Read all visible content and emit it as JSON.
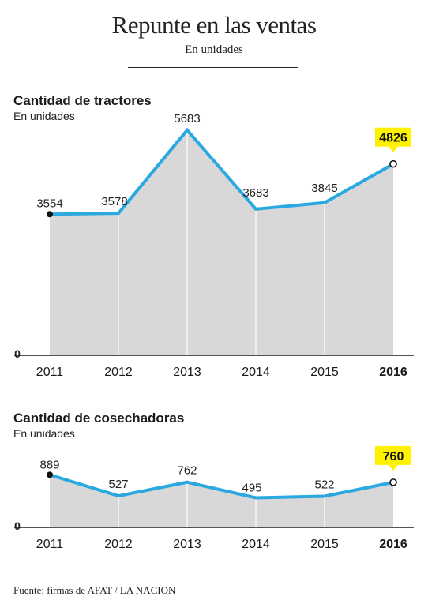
{
  "title": "Repunte en las ventas",
  "subtitle": "En unidades",
  "source": "Fuente: firmas de AFAT / LA NACION",
  "colors": {
    "line": "#2aa8e0",
    "area": "#d8d8d8",
    "highlight": "#fff200",
    "text": "#1a1a1a"
  },
  "chart_data": [
    {
      "type": "area",
      "title": "Cantidad de tractores",
      "subtitle": "En unidades",
      "categories": [
        "2011",
        "2012",
        "2013",
        "2014",
        "2015",
        "2016"
      ],
      "values": [
        3554,
        3578,
        5683,
        3683,
        3845,
        4826
      ],
      "highlight_index": 5,
      "ylim": [
        0,
        6000
      ],
      "yticks": [
        "0"
      ],
      "grid": false
    },
    {
      "type": "area",
      "title": "Cantidad de cosechadoras",
      "subtitle": "En unidades",
      "categories": [
        "2011",
        "2012",
        "2013",
        "2014",
        "2015",
        "2016"
      ],
      "values": [
        889,
        527,
        762,
        495,
        522,
        760
      ],
      "highlight_index": 5,
      "ylim": [
        0,
        1300
      ],
      "yticks": [
        "0"
      ],
      "grid": false
    }
  ]
}
